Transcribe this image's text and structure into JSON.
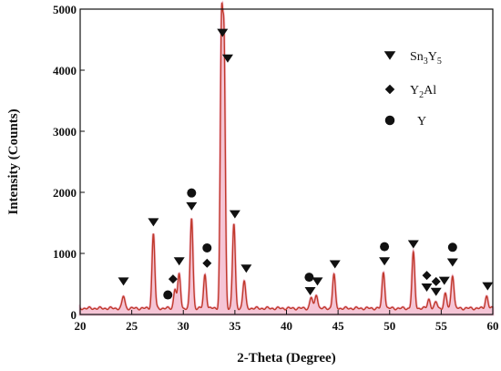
{
  "chart_data": {
    "type": "line",
    "xlabel": "2-Theta (Degree)",
    "ylabel": "Intensity (Counts)",
    "xlim": [
      20,
      60
    ],
    "ylim": [
      0,
      5000
    ],
    "x_ticks": [
      20,
      25,
      30,
      35,
      40,
      45,
      50,
      55,
      60
    ],
    "y_ticks": [
      0,
      1000,
      2000,
      3000,
      4000,
      5000
    ],
    "grid": false,
    "legend_position": "top-right",
    "colors": {
      "line": "#c0392b",
      "fill": "#f4bcd0",
      "axis": "#111111"
    },
    "legend": [
      {
        "marker": "triangle",
        "label": "Sn3Y5",
        "main": "Sn",
        "sub1": "3",
        "mid": "Y",
        "sub2": "5"
      },
      {
        "marker": "diamond",
        "label": "Y2Al",
        "main": "Y",
        "sub1": "2",
        "mid": "Al",
        "sub2": ""
      },
      {
        "marker": "circle",
        "label": "Y",
        "main": "Y",
        "sub1": "",
        "mid": "",
        "sub2": ""
      }
    ],
    "series": [
      {
        "baseline": 100,
        "peaks": [
          {
            "x": 24.2,
            "y": 300
          },
          {
            "x": 27.1,
            "y": 1320
          },
          {
            "x": 29.2,
            "y": 420
          },
          {
            "x": 29.6,
            "y": 650
          },
          {
            "x": 30.8,
            "y": 1580
          },
          {
            "x": 32.1,
            "y": 650
          },
          {
            "x": 33.7,
            "y": 4450
          },
          {
            "x": 33.95,
            "y": 4150
          },
          {
            "x": 34.9,
            "y": 1480
          },
          {
            "x": 35.9,
            "y": 550
          },
          {
            "x": 42.4,
            "y": 280
          },
          {
            "x": 42.9,
            "y": 330
          },
          {
            "x": 44.6,
            "y": 650
          },
          {
            "x": 49.4,
            "y": 690
          },
          {
            "x": 52.3,
            "y": 1000
          },
          {
            "x": 53.8,
            "y": 250
          },
          {
            "x": 54.5,
            "y": 200
          },
          {
            "x": 55.4,
            "y": 330
          },
          {
            "x": 56.1,
            "y": 650
          },
          {
            "x": 59.4,
            "y": 300
          }
        ]
      }
    ],
    "markers": [
      {
        "type": "triangle",
        "x": 24.2,
        "y": 540
      },
      {
        "type": "triangle",
        "x": 27.1,
        "y": 1510
      },
      {
        "type": "circle",
        "x": 28.5,
        "y": 320
      },
      {
        "type": "diamond",
        "x": 29.0,
        "y": 580
      },
      {
        "type": "triangle",
        "x": 29.6,
        "y": 870
      },
      {
        "type": "circle",
        "x": 30.8,
        "y": 1990
      },
      {
        "type": "triangle",
        "x": 30.8,
        "y": 1770
      },
      {
        "type": "circle",
        "x": 32.3,
        "y": 1090
      },
      {
        "type": "diamond",
        "x": 32.3,
        "y": 840
      },
      {
        "type": "triangle",
        "x": 33.8,
        "y": 4610
      },
      {
        "type": "triangle",
        "x": 34.3,
        "y": 4190
      },
      {
        "type": "triangle",
        "x": 35.0,
        "y": 1640
      },
      {
        "type": "triangle",
        "x": 36.1,
        "y": 750
      },
      {
        "type": "circle",
        "x": 42.2,
        "y": 610
      },
      {
        "type": "triangle",
        "x": 42.3,
        "y": 380
      },
      {
        "type": "triangle",
        "x": 43.0,
        "y": 540
      },
      {
        "type": "triangle",
        "x": 44.7,
        "y": 820
      },
      {
        "type": "circle",
        "x": 49.5,
        "y": 1110
      },
      {
        "type": "triangle",
        "x": 49.5,
        "y": 870
      },
      {
        "type": "triangle",
        "x": 52.3,
        "y": 1150
      },
      {
        "type": "diamond",
        "x": 53.6,
        "y": 640
      },
      {
        "type": "triangle",
        "x": 53.6,
        "y": 440
      },
      {
        "type": "diamond",
        "x": 54.5,
        "y": 540
      },
      {
        "type": "triangle",
        "x": 54.5,
        "y": 370
      },
      {
        "type": "triangle",
        "x": 55.3,
        "y": 550
      },
      {
        "type": "circle",
        "x": 56.1,
        "y": 1100
      },
      {
        "type": "triangle",
        "x": 56.1,
        "y": 850
      },
      {
        "type": "triangle",
        "x": 59.5,
        "y": 460
      }
    ]
  }
}
